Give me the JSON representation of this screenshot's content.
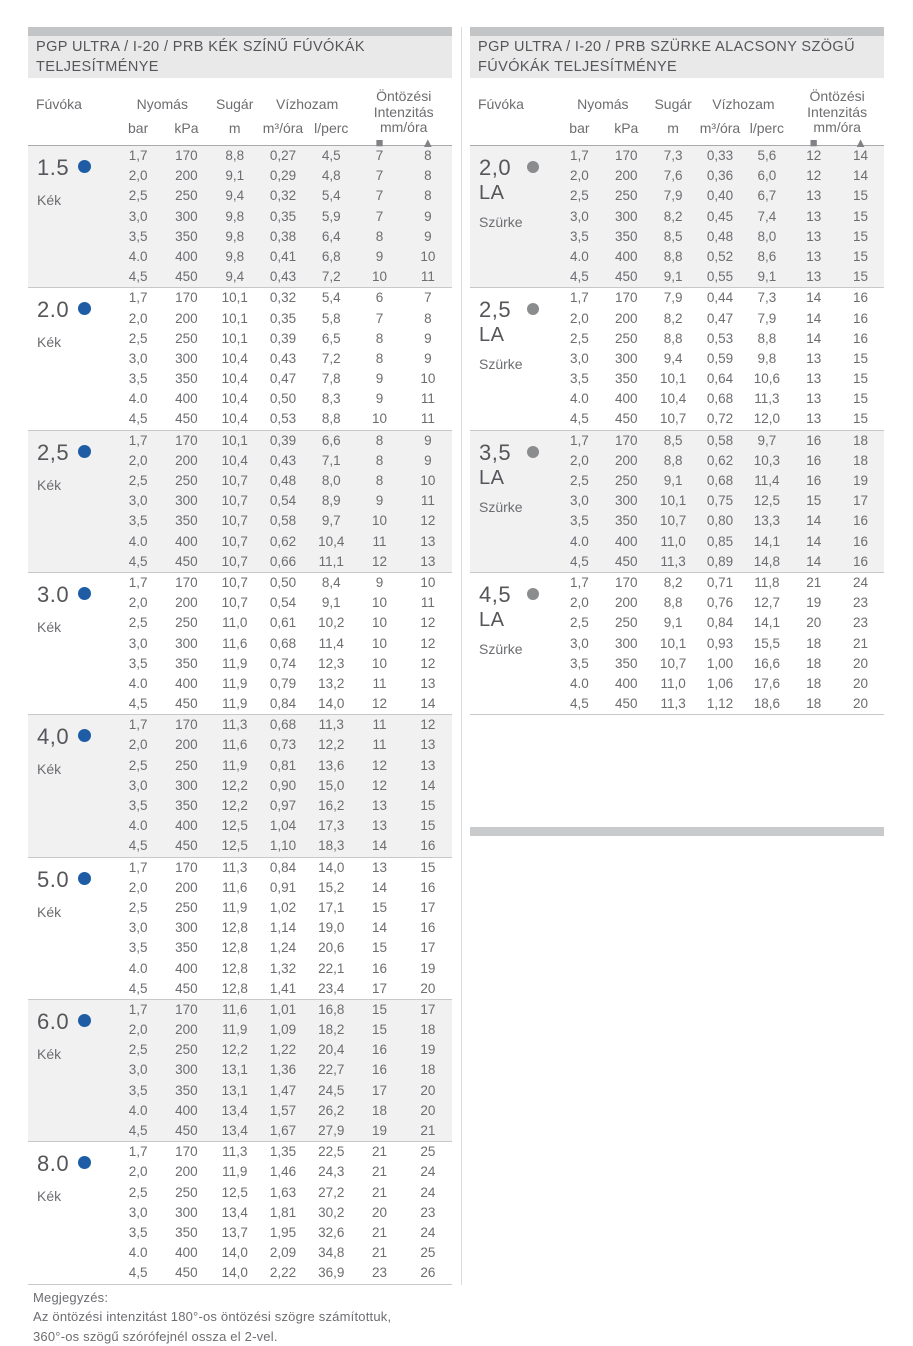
{
  "note": {
    "label": "Megjegyzés:",
    "line1": "Az öntözési intenzitást 180°-os öntözési szögre számítottuk,",
    "line2": "360°-os szögű szórófejnél ossza el 2-vel."
  },
  "columns": {
    "fuvoka": "Fúvóka",
    "nyomas": "Nyomás",
    "sugar": "Sugár",
    "vizhozam": "Vízhozam",
    "ontozesi": "Öntözési",
    "intenzitas": "Intenzitás",
    "mmora": "mm/óra",
    "bar": "bar",
    "kpa": "kPa",
    "m": "m",
    "m3ora": "m³/óra",
    "lperc": "l/perc",
    "square_symbol": "■",
    "triangle_symbol": "▲"
  },
  "colors": {
    "blue_dot": "#1e5ca6",
    "gray_dot": "#8a8c8e",
    "divider_bar": "#c2c4c6",
    "band": "#f1f1f2",
    "title_bg": "#e9e9ea"
  },
  "tables": [
    {
      "id": "blue",
      "title_line1": "PGP ULTRA /  I-20  /  PRB KÉK SZÍNŰ FÚVÓKÁK",
      "title_line2": "TELJESÍTMÉNYE",
      "dot": "blue",
      "groups": [
        {
          "nozzle": "1.5",
          "type": "Kék",
          "rows": [
            [
              "1,7",
              "170",
              "8,8",
              "0,27",
              "4,5",
              "7",
              "8"
            ],
            [
              "2,0",
              "200",
              "9,1",
              "0,29",
              "4,8",
              "7",
              "8"
            ],
            [
              "2,5",
              "250",
              "9,4",
              "0,32",
              "5,4",
              "7",
              "8"
            ],
            [
              "3,0",
              "300",
              "9,8",
              "0,35",
              "5,9",
              "7",
              "9"
            ],
            [
              "3,5",
              "350",
              "9,8",
              "0,38",
              "6,4",
              "8",
              "9"
            ],
            [
              "4.0",
              "400",
              "9,8",
              "0,41",
              "6,8",
              "9",
              "10"
            ],
            [
              "4,5",
              "450",
              "9,4",
              "0,43",
              "7,2",
              "10",
              "11"
            ]
          ]
        },
        {
          "nozzle": "2.0",
          "type": "Kék",
          "rows": [
            [
              "1,7",
              "170",
              "10,1",
              "0,32",
              "5,4",
              "6",
              "7"
            ],
            [
              "2,0",
              "200",
              "10,1",
              "0,35",
              "5,8",
              "7",
              "8"
            ],
            [
              "2,5",
              "250",
              "10,1",
              "0,39",
              "6,5",
              "8",
              "9"
            ],
            [
              "3,0",
              "300",
              "10,4",
              "0,43",
              "7,2",
              "8",
              "9"
            ],
            [
              "3,5",
              "350",
              "10,4",
              "0,47",
              "7,8",
              "9",
              "10"
            ],
            [
              "4.0",
              "400",
              "10,4",
              "0,50",
              "8,3",
              "9",
              "11"
            ],
            [
              "4,5",
              "450",
              "10,4",
              "0,53",
              "8,8",
              "10",
              "11"
            ]
          ]
        },
        {
          "nozzle": "2,5",
          "type": "Kék",
          "rows": [
            [
              "1,7",
              "170",
              "10,1",
              "0,39",
              "6,6",
              "8",
              "9"
            ],
            [
              "2,0",
              "200",
              "10,4",
              "0,43",
              "7,1",
              "8",
              "9"
            ],
            [
              "2,5",
              "250",
              "10,7",
              "0,48",
              "8,0",
              "8",
              "10"
            ],
            [
              "3,0",
              "300",
              "10,7",
              "0,54",
              "8,9",
              "9",
              "11"
            ],
            [
              "3,5",
              "350",
              "10,7",
              "0,58",
              "9,7",
              "10",
              "12"
            ],
            [
              "4.0",
              "400",
              "10,7",
              "0,62",
              "10,4",
              "11",
              "13"
            ],
            [
              "4,5",
              "450",
              "10,7",
              "0,66",
              "11,1",
              "12",
              "13"
            ]
          ]
        },
        {
          "nozzle": "3.0",
          "type": "Kék",
          "rows": [
            [
              "1,7",
              "170",
              "10,7",
              "0,50",
              "8,4",
              "9",
              "10"
            ],
            [
              "2,0",
              "200",
              "10,7",
              "0,54",
              "9,1",
              "10",
              "11"
            ],
            [
              "2,5",
              "250",
              "11,0",
              "0,61",
              "10,2",
              "10",
              "12"
            ],
            [
              "3,0",
              "300",
              "11,6",
              "0,68",
              "11,4",
              "10",
              "12"
            ],
            [
              "3,5",
              "350",
              "11,9",
              "0,74",
              "12,3",
              "10",
              "12"
            ],
            [
              "4.0",
              "400",
              "11,9",
              "0,79",
              "13,2",
              "11",
              "13"
            ],
            [
              "4,5",
              "450",
              "11,9",
              "0,84",
              "14,0",
              "12",
              "14"
            ]
          ]
        },
        {
          "nozzle": "4,0",
          "type": "Kék",
          "rows": [
            [
              "1,7",
              "170",
              "11,3",
              "0,68",
              "11,3",
              "11",
              "12"
            ],
            [
              "2,0",
              "200",
              "11,6",
              "0,73",
              "12,2",
              "11",
              "13"
            ],
            [
              "2,5",
              "250",
              "11,9",
              "0,81",
              "13,6",
              "12",
              "13"
            ],
            [
              "3,0",
              "300",
              "12,2",
              "0,90",
              "15,0",
              "12",
              "14"
            ],
            [
              "3,5",
              "350",
              "12,2",
              "0,97",
              "16,2",
              "13",
              "15"
            ],
            [
              "4.0",
              "400",
              "12,5",
              "1,04",
              "17,3",
              "13",
              "15"
            ],
            [
              "4,5",
              "450",
              "12,5",
              "1,10",
              "18,3",
              "14",
              "16"
            ]
          ]
        },
        {
          "nozzle": "5.0",
          "type": "Kék",
          "rows": [
            [
              "1,7",
              "170",
              "11,3",
              "0,84",
              "14,0",
              "13",
              "15"
            ],
            [
              "2,0",
              "200",
              "11,6",
              "0,91",
              "15,2",
              "14",
              "16"
            ],
            [
              "2,5",
              "250",
              "11,9",
              "1,02",
              "17,1",
              "15",
              "17"
            ],
            [
              "3,0",
              "300",
              "12,8",
              "1,14",
              "19,0",
              "14",
              "16"
            ],
            [
              "3,5",
              "350",
              "12,8",
              "1,24",
              "20,6",
              "15",
              "17"
            ],
            [
              "4.0",
              "400",
              "12,8",
              "1,32",
              "22,1",
              "16",
              "19"
            ],
            [
              "4,5",
              "450",
              "12,8",
              "1,41",
              "23,4",
              "17",
              "20"
            ]
          ]
        },
        {
          "nozzle": "6.0",
          "type": "Kék",
          "rows": [
            [
              "1,7",
              "170",
              "11,6",
              "1,01",
              "16,8",
              "15",
              "17"
            ],
            [
              "2,0",
              "200",
              "11,9",
              "1,09",
              "18,2",
              "15",
              "18"
            ],
            [
              "2,5",
              "250",
              "12,2",
              "1,22",
              "20,4",
              "16",
              "19"
            ],
            [
              "3,0",
              "300",
              "13,1",
              "1,36",
              "22,7",
              "16",
              "18"
            ],
            [
              "3,5",
              "350",
              "13,1",
              "1,47",
              "24,5",
              "17",
              "20"
            ],
            [
              "4.0",
              "400",
              "13,4",
              "1,57",
              "26,2",
              "18",
              "20"
            ],
            [
              "4,5",
              "450",
              "13,4",
              "1,67",
              "27,9",
              "19",
              "21"
            ]
          ]
        },
        {
          "nozzle": "8.0",
          "type": "Kék",
          "rows": [
            [
              "1,7",
              "170",
              "11,3",
              "1,35",
              "22,5",
              "21",
              "25"
            ],
            [
              "2,0",
              "200",
              "11,9",
              "1,46",
              "24,3",
              "21",
              "24"
            ],
            [
              "2,5",
              "250",
              "12,5",
              "1,63",
              "27,2",
              "21",
              "24"
            ],
            [
              "3,0",
              "300",
              "13,4",
              "1,81",
              "30,2",
              "20",
              "23"
            ],
            [
              "3,5",
              "350",
              "13,7",
              "1,95",
              "32,6",
              "21",
              "24"
            ],
            [
              "4.0",
              "400",
              "14,0",
              "2,09",
              "34,8",
              "21",
              "25"
            ],
            [
              "4,5",
              "450",
              "14,0",
              "2,22",
              "36,9",
              "23",
              "26"
            ]
          ]
        }
      ]
    },
    {
      "id": "gray",
      "title_line1": "PGP ULTRA /  I-20  /  PRB SZÜRKE ALACSONY SZÖGŰ",
      "title_line2": "FÚVÓKÁK TELJESÍTMÉNYE",
      "dot": "gray",
      "groups": [
        {
          "nozzle": "2,0",
          "sub": "LA",
          "type": "Szürke",
          "rows": [
            [
              "1,7",
              "170",
              "7,3",
              "0,33",
              "5,6",
              "12",
              "14"
            ],
            [
              "2,0",
              "200",
              "7,6",
              "0,36",
              "6,0",
              "12",
              "14"
            ],
            [
              "2,5",
              "250",
              "7,9",
              "0,40",
              "6,7",
              "13",
              "15"
            ],
            [
              "3,0",
              "300",
              "8,2",
              "0,45",
              "7,4",
              "13",
              "15"
            ],
            [
              "3,5",
              "350",
              "8,5",
              "0,48",
              "8,0",
              "13",
              "15"
            ],
            [
              "4.0",
              "400",
              "8,8",
              "0,52",
              "8,6",
              "13",
              "15"
            ],
            [
              "4,5",
              "450",
              "9,1",
              "0,55",
              "9,1",
              "13",
              "15"
            ]
          ]
        },
        {
          "nozzle": "2,5",
          "sub": "LA",
          "type": "Szürke",
          "rows": [
            [
              "1,7",
              "170",
              "7,9",
              "0,44",
              "7,3",
              "14",
              "16"
            ],
            [
              "2,0",
              "200",
              "8,2",
              "0,47",
              "7,9",
              "14",
              "16"
            ],
            [
              "2,5",
              "250",
              "8,8",
              "0,53",
              "8,8",
              "14",
              "16"
            ],
            [
              "3,0",
              "300",
              "9,4",
              "0,59",
              "9,8",
              "13",
              "15"
            ],
            [
              "3,5",
              "350",
              "10,1",
              "0,64",
              "10,6",
              "13",
              "15"
            ],
            [
              "4.0",
              "400",
              "10,4",
              "0,68",
              "11,3",
              "13",
              "15"
            ],
            [
              "4,5",
              "450",
              "10,7",
              "0,72",
              "12,0",
              "13",
              "15"
            ]
          ]
        },
        {
          "nozzle": "3,5",
          "sub": "LA",
          "type": "Szürke",
          "rows": [
            [
              "1,7",
              "170",
              "8,5",
              "0,58",
              "9,7",
              "16",
              "18"
            ],
            [
              "2,0",
              "200",
              "8,8",
              "0,62",
              "10,3",
              "16",
              "18"
            ],
            [
              "2,5",
              "250",
              "9,1",
              "0,68",
              "11,4",
              "16",
              "19"
            ],
            [
              "3,0",
              "300",
              "10,1",
              "0,75",
              "12,5",
              "15",
              "17"
            ],
            [
              "3,5",
              "350",
              "10,7",
              "0,80",
              "13,3",
              "14",
              "16"
            ],
            [
              "4.0",
              "400",
              "11,0",
              "0,85",
              "14,1",
              "14",
              "16"
            ],
            [
              "4,5",
              "450",
              "11,3",
              "0,89",
              "14,8",
              "14",
              "16"
            ]
          ]
        },
        {
          "nozzle": "4,5",
          "sub": "LA",
          "type": "Szürke",
          "rows": [
            [
              "1,7",
              "170",
              "8,2",
              "0,71",
              "11,8",
              "21",
              "24"
            ],
            [
              "2,0",
              "200",
              "8,8",
              "0,76",
              "12,7",
              "19",
              "23"
            ],
            [
              "2,5",
              "250",
              "9,1",
              "0,84",
              "14,1",
              "20",
              "23"
            ],
            [
              "3,0",
              "300",
              "10,1",
              "0,93",
              "15,5",
              "18",
              "21"
            ],
            [
              "3,5",
              "350",
              "10,7",
              "1,00",
              "16,6",
              "18",
              "20"
            ],
            [
              "4.0",
              "400",
              "11,0",
              "1,06",
              "17,6",
              "18",
              "20"
            ],
            [
              "4,5",
              "450",
              "11,3",
              "1,12",
              "18,6",
              "18",
              "20"
            ]
          ]
        }
      ]
    }
  ]
}
